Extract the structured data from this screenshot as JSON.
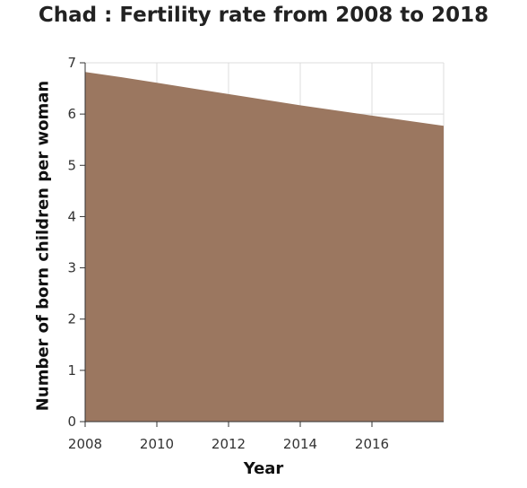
{
  "chart_data": {
    "type": "area",
    "title": "Chad : Fertility rate from 2008 to 2018",
    "xlabel": "Year",
    "ylabel": "Number of born children per woman",
    "x": [
      2008,
      2009,
      2010,
      2011,
      2012,
      2013,
      2014,
      2015,
      2016,
      2017,
      2018
    ],
    "values": [
      6.82,
      6.72,
      6.61,
      6.5,
      6.39,
      6.28,
      6.17,
      6.07,
      5.97,
      5.87,
      5.77
    ],
    "xlim": [
      2008,
      2018
    ],
    "ylim": [
      0,
      7
    ],
    "xticks": [
      2008,
      2010,
      2012,
      2014,
      2016
    ],
    "yticks": [
      0,
      1,
      2,
      3,
      4,
      5,
      6,
      7
    ],
    "grid": true,
    "fill_color": "#9b7760",
    "grid_color": "#dcdcdc"
  }
}
